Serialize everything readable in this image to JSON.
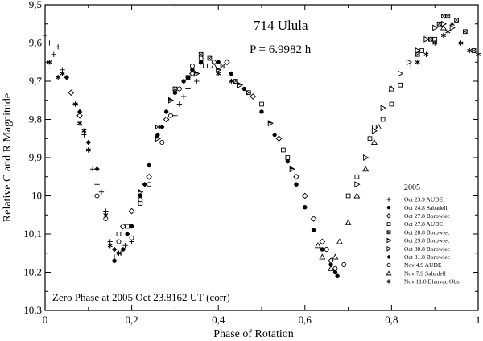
{
  "chart_data": {
    "type": "scatter",
    "title": "714 Ulula",
    "subtitle": "P = 6.9982 h",
    "annotation": "Zero Phase at 2005 Oct 23.8162 UT (corr)",
    "xlabel": "Phase of Rotation",
    "ylabel": "Relative C and R Magnitude",
    "xlim": [
      0,
      1
    ],
    "ylim": [
      9.5,
      10.3
    ],
    "y_inverted": true,
    "x_ticks": [
      "0",
      "0,2",
      "0,4",
      "0,6",
      "0,8",
      "1"
    ],
    "y_ticks": [
      "9,5",
      "9,6",
      "9,7",
      "9,8",
      "9,9",
      "10",
      "10,1",
      "10,2",
      "10,3"
    ],
    "x_tick_values": [
      0,
      0.2,
      0.4,
      0.6,
      0.8,
      1.0
    ],
    "y_tick_values": [
      9.5,
      9.6,
      9.7,
      9.8,
      9.9,
      10.0,
      10.1,
      10.2,
      10.3
    ],
    "grid": false,
    "legend_title": "2005",
    "legend_placement": "bottom-right",
    "series": [
      {
        "name": "Oct 23.9 AUDE",
        "marker": "plus",
        "points": [
          [
            0.0,
            9.58
          ],
          [
            0.01,
            9.6
          ],
          [
            0.02,
            9.63
          ],
          [
            0.03,
            9.61
          ],
          [
            0.04,
            9.67
          ],
          [
            0.07,
            9.76
          ],
          [
            0.09,
            9.84
          ],
          [
            0.1,
            9.88
          ],
          [
            0.11,
            9.93
          ],
          [
            0.12,
            9.97
          ],
          [
            0.13,
            9.99
          ],
          [
            0.14,
            10.04
          ],
          [
            0.15,
            10.12
          ],
          [
            0.16,
            10.16
          ],
          [
            0.175,
            10.15
          ],
          [
            0.185,
            10.13
          ],
          [
            0.2,
            10.12
          ],
          [
            0.3,
            9.79
          ],
          [
            0.31,
            9.76
          ],
          [
            0.32,
            9.74
          ],
          [
            0.33,
            9.72
          ],
          [
            0.35,
            9.7
          ]
        ]
      },
      {
        "name": "Oct 24.8 Sabadell",
        "marker": "filled-circle",
        "points": [
          [
            0.16,
            10.17
          ],
          [
            0.18,
            10.14
          ],
          [
            0.2,
            10.08
          ],
          [
            0.22,
            10.0
          ],
          [
            0.24,
            9.92
          ],
          [
            0.26,
            9.84
          ],
          [
            0.28,
            9.78
          ],
          [
            0.3,
            9.73
          ],
          [
            0.32,
            9.7
          ],
          [
            0.34,
            9.67
          ],
          [
            0.36,
            9.65
          ],
          [
            0.4,
            9.65
          ],
          [
            0.43,
            9.68
          ],
          [
            0.46,
            9.72
          ],
          [
            0.5,
            9.78
          ],
          [
            0.53,
            9.84
          ],
          [
            0.56,
            9.91
          ],
          [
            0.58,
            9.97
          ],
          [
            0.6,
            10.03
          ],
          [
            0.62,
            10.09
          ],
          [
            0.64,
            10.14
          ],
          [
            0.66,
            10.18
          ],
          [
            0.67,
            10.2
          ],
          [
            0.675,
            10.21
          ],
          [
            0.69,
            10.18
          ]
        ]
      },
      {
        "name": "Oct 27.8 Borowiec",
        "marker": "open-diamond",
        "points": [
          [
            0.06,
            9.73
          ],
          [
            0.08,
            9.79
          ],
          [
            0.18,
            10.08
          ],
          [
            0.2,
            10.04
          ],
          [
            0.24,
            9.95
          ],
          [
            0.28,
            9.8
          ],
          [
            0.34,
            9.68
          ],
          [
            0.42,
            9.65
          ],
          [
            0.48,
            9.74
          ],
          [
            0.54,
            9.85
          ],
          [
            0.58,
            9.95
          ],
          [
            0.6,
            10.0
          ],
          [
            0.62,
            10.06
          ],
          [
            0.64,
            10.12
          ],
          [
            0.66,
            10.17
          ]
        ]
      },
      {
        "name": "Oct 27.8 AUDE",
        "marker": "open-square",
        "points": [
          [
            0.17,
            10.1
          ],
          [
            0.19,
            10.08
          ],
          [
            0.22,
            10.02
          ],
          [
            0.37,
            9.66
          ],
          [
            0.5,
            9.76
          ],
          [
            0.55,
            9.88
          ],
          [
            0.56,
            9.9
          ],
          [
            0.7,
            10.0
          ],
          [
            0.72,
            9.95
          ],
          [
            0.75,
            9.85
          ],
          [
            0.76,
            9.82
          ],
          [
            0.78,
            9.8
          ],
          [
            0.8,
            9.76
          ],
          [
            0.82,
            9.71
          ],
          [
            0.84,
            9.66
          ],
          [
            0.87,
            9.62
          ],
          [
            0.9,
            9.59
          ]
        ]
      },
      {
        "name": "Oct 28.8 Borowiec",
        "marker": "crossed-square",
        "points": [
          [
            0.26,
            9.82
          ],
          [
            0.3,
            9.72
          ],
          [
            0.33,
            9.69
          ],
          [
            0.36,
            9.63
          ],
          [
            0.38,
            9.64
          ],
          [
            0.41,
            9.66
          ],
          [
            0.44,
            9.7
          ],
          [
            0.47,
            9.73
          ],
          [
            0.86,
            9.63
          ],
          [
            0.89,
            9.59
          ],
          [
            0.91,
            9.55
          ],
          [
            0.92,
            9.53
          ],
          [
            0.93,
            9.53
          ],
          [
            0.95,
            9.54
          ],
          [
            0.97,
            9.57
          ],
          [
            0.99,
            9.62
          ]
        ]
      },
      {
        "name": "Oct 29.8 Borowiec",
        "marker": "filled-triangle-right",
        "points": [
          [
            0.22,
            9.99
          ],
          [
            0.26,
            9.85
          ],
          [
            0.29,
            9.75
          ],
          [
            0.35,
            9.68
          ],
          [
            0.4,
            9.67
          ],
          [
            0.45,
            9.71
          ],
          [
            0.52,
            9.81
          ],
          [
            0.57,
            9.93
          ]
        ]
      },
      {
        "name": "Oct 30.8 Borowiec",
        "marker": "open-triangle-right",
        "points": [
          [
            0.72,
            9.97
          ],
          [
            0.74,
            9.9
          ],
          [
            0.76,
            9.83
          ],
          [
            0.78,
            9.77
          ],
          [
            0.8,
            9.72
          ],
          [
            0.82,
            9.68
          ],
          [
            0.84,
            9.65
          ],
          [
            0.86,
            9.62
          ],
          [
            0.88,
            9.59
          ],
          [
            0.9,
            9.56
          ],
          [
            0.92,
            9.55
          ],
          [
            0.94,
            9.56
          ]
        ]
      },
      {
        "name": "Oct 31.8 Borowiec",
        "marker": "filled-diamond",
        "points": [
          [
            0.05,
            9.69
          ],
          [
            0.08,
            9.78
          ],
          [
            0.1,
            9.86
          ],
          [
            0.12,
            9.93
          ],
          [
            0.16,
            10.14
          ],
          [
            0.19,
            10.1
          ],
          [
            0.23,
            9.97
          ],
          [
            0.27,
            9.82
          ],
          [
            0.31,
            9.72
          ],
          [
            0.33,
            9.69
          ]
        ]
      },
      {
        "name": "Nov 4.9 AUDE",
        "marker": "open-circle",
        "points": [
          [
            0.12,
            10.0
          ],
          [
            0.14,
            10.06
          ],
          [
            0.17,
            10.12
          ],
          [
            0.2,
            10.11
          ],
          [
            0.22,
            10.01
          ],
          [
            0.24,
            9.97
          ],
          [
            0.27,
            9.86
          ],
          [
            0.29,
            9.79
          ],
          [
            0.31,
            9.72
          ],
          [
            0.34,
            9.66
          ],
          [
            0.36,
            9.64
          ],
          [
            0.39,
            9.65
          ],
          [
            0.65,
            10.14
          ],
          [
            0.67,
            10.19
          ],
          [
            0.69,
            10.18
          ]
        ]
      },
      {
        "name": "Nov 7.9 Sabadell",
        "marker": "open-triangle-up",
        "points": [
          [
            0.39,
            9.66
          ],
          [
            0.63,
            10.13
          ],
          [
            0.64,
            10.16
          ],
          [
            0.66,
            10.19
          ],
          [
            0.67,
            10.16
          ],
          [
            0.68,
            10.12
          ],
          [
            0.7,
            10.07
          ],
          [
            0.72,
            10.0
          ],
          [
            0.74,
            9.93
          ],
          [
            0.76,
            9.86
          ],
          [
            0.77,
            9.82
          ],
          [
            0.8,
            9.72
          ],
          [
            0.92,
            9.56
          ]
        ]
      },
      {
        "name": "Nov 11.8 Blauvac Obs.",
        "marker": "asterisk",
        "points": [
          [
            0.01,
            9.65
          ],
          [
            0.03,
            9.69
          ],
          [
            0.04,
            9.68
          ],
          [
            0.07,
            9.76
          ],
          [
            0.08,
            9.81
          ],
          [
            0.09,
            9.83
          ],
          [
            0.1,
            9.88
          ],
          [
            0.14,
            10.05
          ],
          [
            0.15,
            10.13
          ],
          [
            0.17,
            10.15
          ],
          [
            0.36,
            9.65
          ],
          [
            0.4,
            9.68
          ],
          [
            0.43,
            9.7
          ],
          [
            0.86,
            9.65
          ],
          [
            0.88,
            9.63
          ],
          [
            0.9,
            9.6
          ],
          [
            0.92,
            9.58
          ],
          [
            0.93,
            9.57
          ],
          [
            0.94,
            9.55
          ],
          [
            0.96,
            9.6
          ],
          [
            0.98,
            9.62
          ],
          [
            1.0,
            9.63
          ]
        ]
      }
    ]
  }
}
